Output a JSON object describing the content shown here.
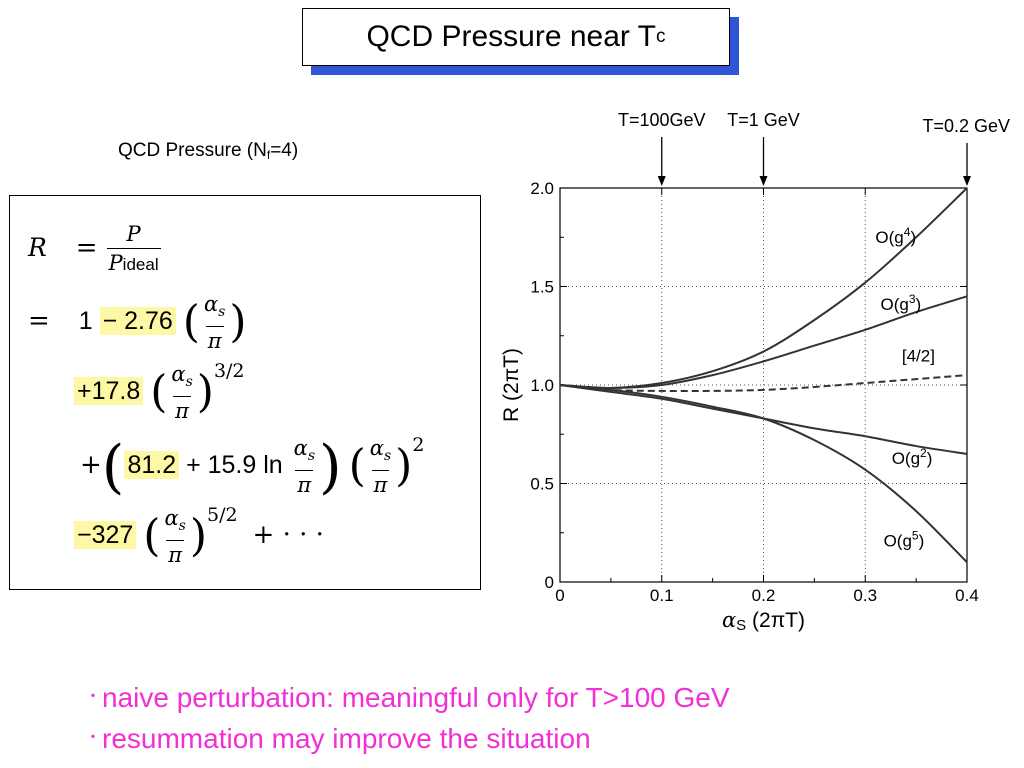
{
  "title": {
    "main": "QCD Pressure near T",
    "sub": "c"
  },
  "formula": {
    "caption_pre": "QCD Pressure (N",
    "caption_sub": "f",
    "caption_post": "=4)",
    "R": "R",
    "P": "P",
    "P_ideal": "P",
    "ideal_sub": "ideal",
    "one": "1",
    "c1": "− 2.76",
    "c2": "+17.8",
    "c3": "81.2",
    "c3b": "+ 15.9 ln",
    "c4": "−327",
    "alpha": "α",
    "alpha_sub": "s",
    "pi": "π",
    "exp32": "3/2",
    "exp2": "2",
    "exp52": "5/2",
    "plus": "+",
    "eq": "=",
    "dots": "+ · · ·"
  },
  "chart_data": {
    "type": "line",
    "xlabel": "α",
    "xlabel_sub": "S",
    "xlabel_suffix": "(2πT)",
    "ylabel": "R (2πT)",
    "xlim": [
      0,
      0.4
    ],
    "ylim": [
      0,
      2.0
    ],
    "x_ticks": [
      "0",
      "0.1",
      "0.2",
      "0.3",
      "0.4"
    ],
    "y_ticks": [
      "0",
      "0.5",
      "1.0",
      "1.5",
      "2.0"
    ],
    "grid": "dotted verticals at 0.1, 0.2, 0.3; dotted horizontals at 0.5, 1.0, 1.5",
    "top_markers": [
      {
        "x": 0.1,
        "label": "T=100GeV"
      },
      {
        "x": 0.2,
        "label": "T=1 GeV"
      },
      {
        "x": 0.4,
        "label": "T=0.2 GeV"
      }
    ],
    "series": [
      {
        "name": "O(g4)",
        "label_base": "O(g",
        "label_sup": "4",
        "label_end": ")",
        "dash": false,
        "x": [
          0,
          0.05,
          0.1,
          0.15,
          0.2,
          0.25,
          0.3,
          0.35,
          0.4
        ],
        "y": [
          1.0,
          0.985,
          1.01,
          1.07,
          1.17,
          1.33,
          1.52,
          1.75,
          2.0
        ]
      },
      {
        "name": "O(g3)",
        "label_base": "O(g",
        "label_sup": "3",
        "label_end": ")",
        "dash": false,
        "x": [
          0,
          0.05,
          0.1,
          0.15,
          0.2,
          0.25,
          0.3,
          0.35,
          0.4
        ],
        "y": [
          1.0,
          0.985,
          1.0,
          1.05,
          1.12,
          1.2,
          1.28,
          1.37,
          1.45
        ]
      },
      {
        "name": "[4/2]",
        "label_base": "[4/2]",
        "label_sup": "",
        "label_end": "",
        "dash": true,
        "x": [
          0,
          0.05,
          0.1,
          0.15,
          0.2,
          0.25,
          0.3,
          0.35,
          0.4
        ],
        "y": [
          1.0,
          0.975,
          0.97,
          0.97,
          0.975,
          0.99,
          1.01,
          1.03,
          1.05
        ]
      },
      {
        "name": "O(g2)",
        "label_base": "O(g",
        "label_sup": "2",
        "label_end": ")",
        "dash": false,
        "x": [
          0,
          0.05,
          0.1,
          0.15,
          0.2,
          0.25,
          0.3,
          0.35,
          0.4
        ],
        "y": [
          1.0,
          0.965,
          0.93,
          0.88,
          0.83,
          0.78,
          0.74,
          0.69,
          0.65
        ]
      },
      {
        "name": "O(g5)",
        "label_base": "O(g",
        "label_sup": "5",
        "label_end": ")",
        "dash": false,
        "x": [
          0,
          0.05,
          0.1,
          0.15,
          0.2,
          0.25,
          0.3,
          0.35,
          0.4
        ],
        "y": [
          1.0,
          0.975,
          0.94,
          0.89,
          0.83,
          0.72,
          0.57,
          0.36,
          0.1
        ]
      }
    ]
  },
  "bullets": [
    "naive perturbation: meaningful only  for T>100 GeV",
    "resummation may improve the situation"
  ],
  "bullet_mark": "･",
  "colors": {
    "title_shadow": "#2f56d6",
    "highlight": "#fcf8a6",
    "bullet_text": "#f12fd4"
  }
}
